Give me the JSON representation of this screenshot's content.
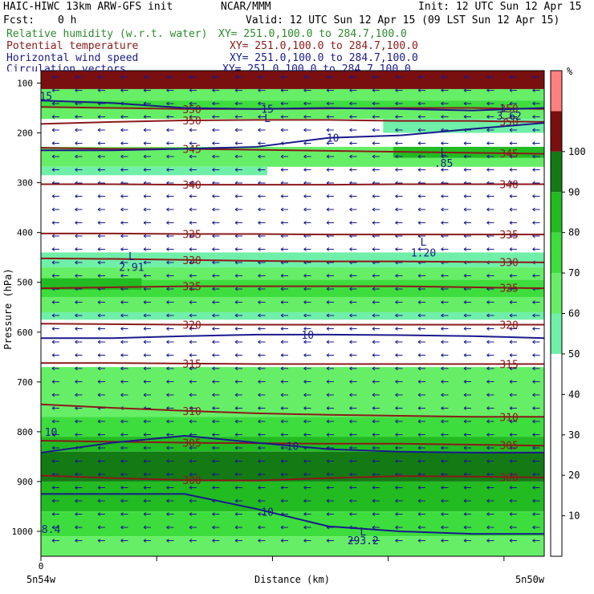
{
  "header": {
    "model": "HAIC-HIWC 13km ARW-GFS init",
    "center": "NCAR/MMM",
    "init": "Init: 12 UTC Sun 12 Apr 15",
    "fcst_label": "Fcst:",
    "fcst_value": "0 h",
    "valid": "Valid: 12 UTC Sun 12 Apr 15 (09 LST Sun 12 Apr 15)"
  },
  "legend": [
    {
      "name": "Relative humidity (w.r.t. water)",
      "xy": "XY= 251.0,100.0 to 284.7,100.0",
      "color": "#2e8b2e"
    },
    {
      "name": "Potential temperature",
      "xy": "XY= 251.0,100.0 to 284.7,100.0",
      "color": "#8b1a1a"
    },
    {
      "name": "Horizontal wind speed",
      "xy": "XY= 251.0,100.0 to 284.7,100.0",
      "color": "#1a1a8b"
    },
    {
      "name": "Circulation vectors",
      "xy": "XY= 251.0,100.0 to 284.7,100.0",
      "color": "#1a1a8b"
    }
  ],
  "chart_data": {
    "type": "heatmap",
    "ylabel": "Pressure (hPa)",
    "xlabel": "Distance (km)",
    "x_start_tick": "0",
    "x_left_label": "5n54w",
    "x_right_label": "5n50w",
    "ylim": [
      1050,
      75
    ],
    "y_ticks": [
      100,
      200,
      300,
      400,
      500,
      600,
      700,
      800,
      900,
      1000
    ],
    "colorbar": {
      "unit": "%",
      "ticks": [
        10,
        20,
        30,
        40,
        50,
        60,
        70,
        80,
        90,
        100
      ],
      "levels": [
        {
          "from": 0,
          "to": 50,
          "color": "#ffffff"
        },
        {
          "from": 50,
          "to": 60,
          "color": "#6fefa8"
        },
        {
          "from": 60,
          "to": 70,
          "color": "#66ee66"
        },
        {
          "from": 70,
          "to": 80,
          "color": "#3ddd3d"
        },
        {
          "from": 80,
          "to": 90,
          "color": "#22bb22"
        },
        {
          "from": 90,
          "to": 100,
          "color": "#147a14"
        },
        {
          "from": 100,
          "to": 110,
          "color": "#7a0f0f"
        },
        {
          "from": 110,
          "to": 120,
          "color": "#ff8080"
        }
      ]
    },
    "rh_bands": [
      {
        "top": 75,
        "bottom": 112,
        "level": 100
      },
      {
        "top": 112,
        "bottom": 135,
        "level": 60
      },
      {
        "top": 135,
        "bottom": 150,
        "level": 70
      },
      {
        "top": 150,
        "bottom": 172,
        "level": 60
      },
      {
        "top": 172,
        "bottom": 200,
        "level": 50,
        "x0": 0.68,
        "x1": 1.0
      },
      {
        "top": 228,
        "bottom": 268,
        "level": 60
      },
      {
        "top": 228,
        "bottom": 250,
        "level": 80,
        "x0": 0.7,
        "x1": 1.0
      },
      {
        "top": 268,
        "bottom": 285,
        "level": 50,
        "x0": 0.0,
        "x1": 0.45
      },
      {
        "top": 440,
        "bottom": 470,
        "level": 50
      },
      {
        "top": 470,
        "bottom": 495,
        "level": 60
      },
      {
        "top": 495,
        "bottom": 530,
        "level": 70
      },
      {
        "top": 492,
        "bottom": 515,
        "level": 80,
        "x0": 0.0,
        "x1": 0.2
      },
      {
        "top": 530,
        "bottom": 560,
        "level": 60
      },
      {
        "top": 560,
        "bottom": 575,
        "level": 50
      },
      {
        "top": 670,
        "bottom": 770,
        "level": 60
      },
      {
        "top": 770,
        "bottom": 810,
        "level": 70
      },
      {
        "top": 810,
        "bottom": 840,
        "level": 80
      },
      {
        "top": 840,
        "bottom": 900,
        "level": 90
      },
      {
        "top": 900,
        "bottom": 960,
        "level": 80
      },
      {
        "top": 960,
        "bottom": 1010,
        "level": 70
      },
      {
        "top": 1010,
        "bottom": 1050,
        "level": 60
      }
    ],
    "theta_contours": [
      {
        "label": "350",
        "p": [
          148,
          150,
          152,
          152,
          151,
          150,
          150,
          152
        ]
      },
      {
        "label": "350",
        "p": [
          182,
          178,
          175,
          174,
          174,
          176,
          176,
          178
        ]
      },
      {
        "label": "345",
        "p": [
          230,
          232,
          232,
          234,
          236,
          238,
          240,
          242
        ]
      },
      {
        "label": "340",
        "p": [
          303,
          303,
          304,
          304,
          304,
          303,
          303,
          303
        ]
      },
      {
        "label": "335",
        "p": [
          402,
          402,
          403,
          403,
          404,
          404,
          404,
          404
        ]
      },
      {
        "label": "330",
        "p": [
          452,
          453,
          455,
          457,
          458,
          458,
          459,
          460
        ]
      },
      {
        "label": "325",
        "p": [
          512,
          510,
          508,
          508,
          508,
          508,
          510,
          512
        ]
      },
      {
        "label": "320",
        "p": [
          583,
          584,
          585,
          585,
          585,
          585,
          585,
          585
        ]
      },
      {
        "label": "315",
        "p": [
          662,
          662,
          663,
          664,
          664,
          664,
          664,
          664
        ]
      },
      {
        "label": "310",
        "p": [
          745,
          752,
          758,
          763,
          766,
          768,
          770,
          770
        ]
      },
      {
        "label": "305",
        "p": [
          818,
          820,
          822,
          823,
          824,
          824,
          826,
          828
        ]
      },
      {
        "label": "300",
        "p": [
          888,
          893,
          897,
          898,
          893,
          889,
          890,
          892
        ]
      }
    ],
    "wind_contours": [
      {
        "label": "15",
        "p": [
          135,
          140,
          150,
          152,
          150,
          152,
          155,
          150
        ]
      },
      {
        "label": "10",
        "p": [
          235,
          235,
          232,
          228,
          210,
          205,
          192,
          180
        ]
      },
      {
        "label": "10",
        "p": [
          612,
          612,
          608,
          605,
          605,
          606,
          608,
          612
        ]
      },
      {
        "label": "10",
        "p": [
          842,
          822,
          808,
          822,
          835,
          840,
          842,
          842
        ]
      },
      {
        "label": "10",
        "p": [
          925,
          925,
          925,
          955,
          990,
          1000,
          1005,
          1005
        ]
      }
    ],
    "annotations": [
      {
        "text": "L",
        "x": 0.45,
        "p": 170
      },
      {
        "text": "L",
        "x": 0.92,
        "p": 150
      },
      {
        "text": "3.62",
        "x": 0.93,
        "p": 165
      },
      {
        "text": "L",
        "x": 0.8,
        "p": 238
      },
      {
        "text": ".85",
        "x": 0.8,
        "p": 260
      },
      {
        "text": "L",
        "x": 0.18,
        "p": 447
      },
      {
        "text": "2.91",
        "x": 0.18,
        "p": 469
      },
      {
        "text": "L",
        "x": 0.76,
        "p": 418
      },
      {
        "text": "1.20",
        "x": 0.76,
        "p": 440
      },
      {
        "text": "L",
        "x": 0.64,
        "p": 1000
      },
      {
        "text": "293.2",
        "x": 0.64,
        "p": 1018
      },
      {
        "text": "8.4",
        "x": 0.02,
        "p": 995
      },
      {
        "text": "10",
        "x": 0.02,
        "p": 800
      },
      {
        "text": "15",
        "x": 0.01,
        "p": 126
      }
    ]
  }
}
